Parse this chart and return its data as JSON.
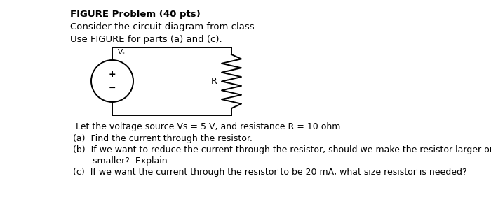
{
  "title": "FIGURE Problem (40 pts)",
  "line1": "Consider the circuit diagram from class.",
  "line2": "Use FIGURE for parts (a) and (c).",
  "body1": "  Let the voltage source Vs = 5 V, and resistance R = 10 ohm.",
  "body2": " (a)  Find the current through the resistor.",
  "body3": " (b)  If we want to reduce the current through the resistor, should we make the resistor larger or",
  "body3b": "        smaller?  Explain.",
  "body4": " (c)  If we want the current through the resistor to be 20 mA, what size resistor is needed?",
  "bg_color": "#ffffff",
  "text_color": "#000000",
  "fig_width": 7.0,
  "fig_height": 2.92,
  "dpi": 100
}
